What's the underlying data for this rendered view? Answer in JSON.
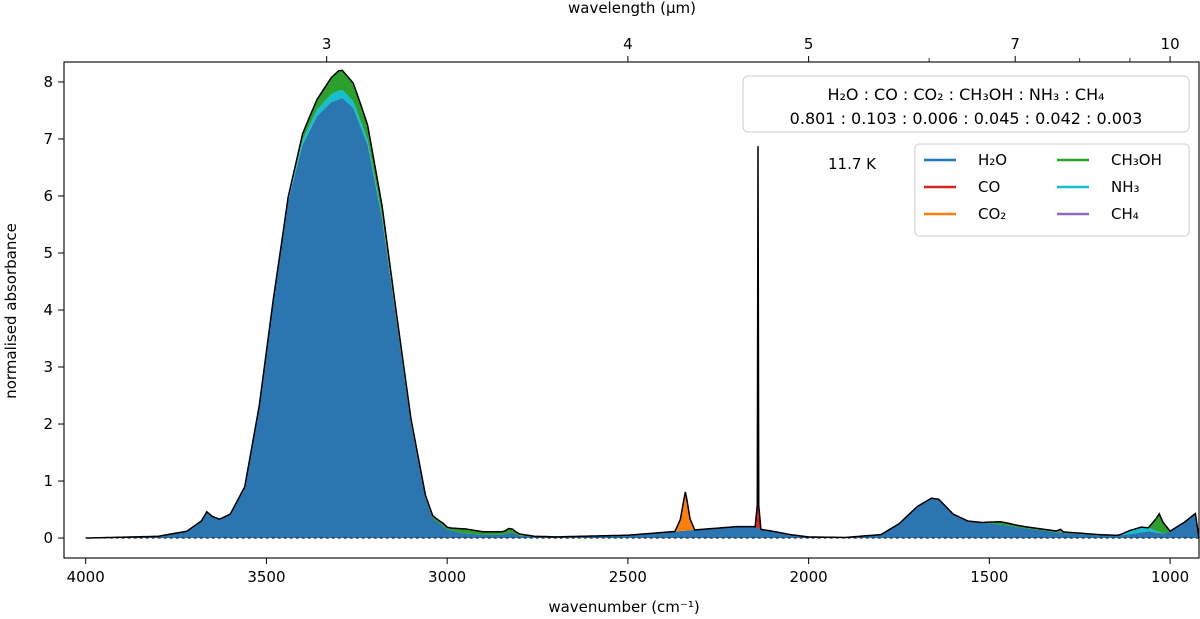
{
  "chart_data": {
    "type": "area",
    "xlabel": "wavenumber (cm⁻¹)",
    "ylabel": "normalised absorbance",
    "top_xlabel": "wavelength (µm)",
    "xlim": [
      4060,
      920
    ],
    "ylim": [
      -0.35,
      8.35
    ],
    "x_ticks": [
      4000,
      3500,
      3000,
      2500,
      2000,
      1500,
      1000
    ],
    "y_ticks": [
      0,
      1,
      2,
      3,
      4,
      5,
      6,
      7,
      8
    ],
    "top_ticks": [
      {
        "label": "3",
        "um": 3
      },
      {
        "label": "4",
        "um": 4
      },
      {
        "label": "5",
        "um": 5
      },
      {
        "label": "7",
        "um": 7
      },
      {
        "label": "10",
        "um": 10
      }
    ],
    "top_minor_ticks_um": [
      6,
      8,
      9
    ],
    "temperature_label": "11.7 K",
    "ratio_box": {
      "species_line": "H₂O : CO : CO₂ : CH₃OH : NH₃ : CH₄",
      "ratio_line": "0.801 : 0.103 : 0.006 : 0.045 : 0.042 : 0.003"
    },
    "legend": [
      {
        "label": "H₂O",
        "color": "#1f77b4"
      },
      {
        "label": "CH₃OH",
        "color": "#2ca02c"
      },
      {
        "label": "CO",
        "color": "#d62728"
      },
      {
        "label": "NH₃",
        "color": "#17becf"
      },
      {
        "label": "CO₂",
        "color": "#ff7f0e"
      },
      {
        "label": "CH₄",
        "color": "#9467bd"
      }
    ],
    "series": [
      {
        "name": "H2O",
        "color": "#2b75b0",
        "points": [
          [
            4000,
            0
          ],
          [
            3800,
            0.03
          ],
          [
            3720,
            0.12
          ],
          [
            3680,
            0.3
          ],
          [
            3665,
            0.46
          ],
          [
            3650,
            0.38
          ],
          [
            3630,
            0.33
          ],
          [
            3600,
            0.42
          ],
          [
            3560,
            0.9
          ],
          [
            3520,
            2.3
          ],
          [
            3480,
            4.2
          ],
          [
            3440,
            5.9
          ],
          [
            3400,
            6.9
          ],
          [
            3360,
            7.4
          ],
          [
            3320,
            7.65
          ],
          [
            3290,
            7.72
          ],
          [
            3260,
            7.55
          ],
          [
            3220,
            6.9
          ],
          [
            3180,
            5.6
          ],
          [
            3140,
            3.8
          ],
          [
            3100,
            2.0
          ],
          [
            3060,
            0.7
          ],
          [
            3040,
            0.35
          ],
          [
            3000,
            0.15
          ],
          [
            2950,
            0.08
          ],
          [
            2900,
            0.06
          ],
          [
            2850,
            0.06
          ],
          [
            2820,
            0.1
          ],
          [
            2800,
            0.04
          ],
          [
            2700,
            0.02
          ],
          [
            2500,
            0.05
          ],
          [
            2400,
            0.1
          ],
          [
            2300,
            0.15
          ],
          [
            2200,
            0.2
          ],
          [
            2150,
            0.2
          ],
          [
            2130,
            0.15
          ],
          [
            2100,
            0.12
          ],
          [
            2050,
            0.06
          ],
          [
            2000,
            0.02
          ],
          [
            1900,
            0.01
          ],
          [
            1800,
            0.06
          ],
          [
            1750,
            0.25
          ],
          [
            1700,
            0.55
          ],
          [
            1660,
            0.7
          ],
          [
            1640,
            0.68
          ],
          [
            1600,
            0.42
          ],
          [
            1560,
            0.3
          ],
          [
            1500,
            0.26
          ],
          [
            1450,
            0.22
          ],
          [
            1400,
            0.17
          ],
          [
            1300,
            0.09
          ],
          [
            1200,
            0.05
          ],
          [
            1150,
            0.04
          ],
          [
            1100,
            0.08
          ],
          [
            1060,
            0.12
          ],
          [
            1040,
            0.1
          ],
          [
            1020,
            0.08
          ],
          [
            1000,
            0.12
          ],
          [
            960,
            0.28
          ],
          [
            920,
            0.48
          ]
        ]
      },
      {
        "name": "CO",
        "color": "#d62728",
        "points": [
          [
            2148,
            0
          ],
          [
            2142,
            0.4
          ],
          [
            2140,
            6.7
          ],
          [
            2138,
            0.4
          ],
          [
            2132,
            0
          ]
        ]
      },
      {
        "name": "CO2",
        "color": "#ff7f0e",
        "points": [
          [
            2370,
            0
          ],
          [
            2355,
            0.2
          ],
          [
            2345,
            0.55
          ],
          [
            2341,
            0.68
          ],
          [
            2337,
            0.55
          ],
          [
            2328,
            0.2
          ],
          [
            2315,
            0
          ]
        ]
      },
      {
        "name": "CH3OH",
        "color": "#2ca02c",
        "points": [
          [
            3560,
            0
          ],
          [
            3440,
            0.05
          ],
          [
            3360,
            0.18
          ],
          [
            3300,
            0.35
          ],
          [
            3240,
            0.3
          ],
          [
            3160,
            0.15
          ],
          [
            3060,
            0.05
          ],
          [
            3000,
            0.03
          ],
          [
            2950,
            0.08
          ],
          [
            2900,
            0.05
          ],
          [
            2840,
            0.05
          ],
          [
            2830,
            0.08
          ],
          [
            2810,
            0.04
          ],
          [
            2760,
            0
          ],
          [
            1520,
            0
          ],
          [
            1470,
            0.05
          ],
          [
            1420,
            0.03
          ],
          [
            1060,
            0
          ],
          [
            1040,
            0.2
          ],
          [
            1030,
            0.32
          ],
          [
            1020,
            0.2
          ],
          [
            1000,
            0
          ]
        ]
      },
      {
        "name": "NH3",
        "color": "#17becf",
        "points": [
          [
            3460,
            0
          ],
          [
            3380,
            0.1
          ],
          [
            3300,
            0.15
          ],
          [
            3220,
            0.08
          ],
          [
            3140,
            0
          ],
          [
            1140,
            0
          ],
          [
            1110,
            0.06
          ],
          [
            1080,
            0.09
          ],
          [
            1060,
            0.06
          ],
          [
            1020,
            0
          ]
        ]
      },
      {
        "name": "CH4",
        "color": "#9467bd",
        "points": [
          [
            3030,
            0
          ],
          [
            3010,
            0.02
          ],
          [
            2990,
            0
          ],
          [
            1315,
            0
          ],
          [
            1303,
            0.04
          ],
          [
            1295,
            0
          ]
        ]
      }
    ]
  }
}
